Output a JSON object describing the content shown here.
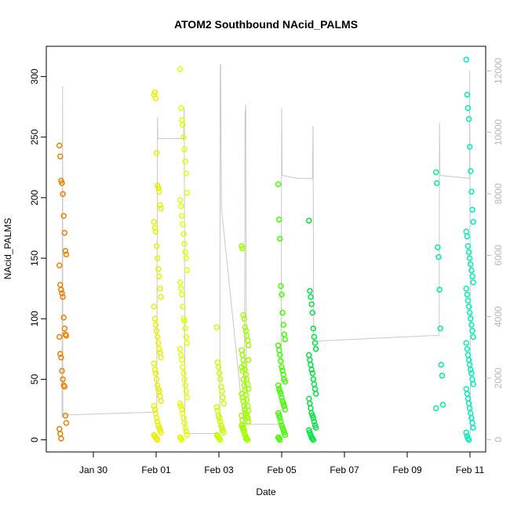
{
  "chart_data": {
    "type": "scatter",
    "title": "ATOM2 Southbound NAcid_PALMS",
    "xlabel": "Date",
    "ylabel": "NAcid_PALMS",
    "x_unit": "date",
    "xlim": [
      "2017-01-28T12:00",
      "2017-02-11T12:00"
    ],
    "ylim": [
      -10,
      325
    ],
    "y2lim": [
      -400,
      12800
    ],
    "x_ticks": [
      {
        "date": "2017-01-30",
        "label": "Jan 30"
      },
      {
        "date": "2017-02-01",
        "label": "Feb 01"
      },
      {
        "date": "2017-02-03",
        "label": "Feb 03"
      },
      {
        "date": "2017-02-05",
        "label": "Feb 05"
      },
      {
        "date": "2017-02-07",
        "label": "Feb 07"
      },
      {
        "date": "2017-02-09",
        "label": "Feb 09"
      },
      {
        "date": "2017-02-11",
        "label": "Feb 11"
      }
    ],
    "y_ticks": [
      0,
      50,
      100,
      150,
      200,
      250,
      300
    ],
    "y2_ticks": [
      0,
      2000,
      4000,
      6000,
      8000,
      10000,
      12000
    ],
    "grid": false,
    "legend": "none",
    "color_scale": [
      "#ff8c00",
      "#ffd700",
      "#ffff00",
      "#adff2f",
      "#00ff00",
      "#00e676",
      "#00ffcc"
    ],
    "series": [
      {
        "kind": "points",
        "flights": [
          {
            "date": "2017-01-29T00:40",
            "color": "#f08000",
            "values": [
              243,
              234,
              214,
              212,
              203,
              185,
              171,
              156,
              153,
              144,
              128,
              124,
              121,
              118,
              101,
              92,
              87,
              86,
              85,
              71,
              68,
              57,
              50,
              45,
              44,
              20,
              14,
              9,
              5,
              1
            ]
          },
          {
            "date": "2017-02-01T01:00",
            "color": "#e8f000",
            "values": [
              285,
              287,
              282,
              237,
              210,
              208,
              205,
              194,
              191,
              180,
              175,
              172,
              160,
              150,
              141,
              135,
              125,
              118,
              110,
              100,
              95,
              90,
              85,
              80,
              75,
              72,
              68,
              63,
              58,
              55,
              50,
              45,
              42,
              40,
              36,
              32,
              28,
              25,
              22,
              18,
              15,
              12,
              10,
              8,
              6,
              4,
              3,
              2,
              1,
              0
            ]
          },
          {
            "date": "2017-02-01T21:00",
            "color": "#e0ff00",
            "values": [
              306,
              274,
              264,
              260,
              250,
              240,
              230,
              220,
              204,
              198,
              193,
              185,
              178,
              170,
              162,
              155,
              150,
              140,
              130,
              125,
              120,
              110,
              100,
              98,
              92,
              85,
              80,
              75,
              70,
              66,
              60,
              55,
              50,
              45,
              40,
              35,
              30,
              28,
              25,
              22,
              18,
              14,
              10,
              7,
              4,
              2,
              1,
              0
            ]
          },
          {
            "date": "2017-02-03T01:00",
            "color": "#c8ff00",
            "values": [
              93,
              64,
              60,
              55,
              50,
              44,
              40,
              35,
              30,
              27,
              24,
              20,
              18,
              15,
              12,
              10,
              8,
              6,
              4,
              3,
              2,
              1,
              0
            ]
          },
          {
            "date": "2017-02-03T20:00",
            "color": "#a0ff00",
            "values": [
              160,
              158,
              103,
              100,
              93,
              90,
              86,
              82,
              78,
              74,
              70,
              66,
              62,
              58,
              54,
              50,
              46,
              42,
              38,
              35,
              32,
              28,
              25,
              22,
              20,
              18,
              15,
              12,
              10,
              8,
              6,
              4,
              2,
              1,
              0,
              66,
              60,
              57,
              50,
              45,
              41,
              37,
              33,
              28,
              24,
              20,
              16,
              12,
              8,
              4,
              1
            ]
          },
          {
            "date": "2017-02-05T00:00",
            "color": "#40ff00",
            "values": [
              211,
              182,
              166,
              127,
              120,
              105,
              95,
              87,
              83,
              78,
              74,
              70,
              65,
              60,
              57,
              54,
              50,
              48,
              45,
              42,
              40,
              38,
              35,
              32,
              30,
              28,
              25,
              22,
              20,
              18,
              15,
              12,
              10,
              8,
              6,
              4,
              2,
              1,
              0
            ]
          },
          {
            "date": "2017-02-05T23:30",
            "color": "#00e640",
            "values": [
              181,
              123,
              118,
              112,
              105,
              92,
              85,
              80,
              75,
              70,
              66,
              62,
              58,
              55,
              50,
              46,
              42,
              38,
              34,
              30,
              26,
              22,
              20,
              18,
              15,
              12,
              10,
              8,
              6,
              4,
              2,
              1,
              0
            ]
          },
          {
            "date": "2017-02-10T00:40",
            "color": "#00f0a0",
            "values": [
              221,
              212,
              159,
              151,
              124,
              92,
              62,
              53,
              29,
              26
            ]
          },
          {
            "date": "2017-02-10T23:50",
            "color": "#00f0b8",
            "values": [
              314,
              285,
              274,
              265,
              242,
              222,
              205,
              190,
              180,
              172,
              168,
              160,
              155,
              150,
              145,
              140,
              135,
              130,
              125,
              120,
              115,
              110,
              105,
              100,
              95,
              90,
              85,
              80,
              75,
              70,
              66,
              62,
              58,
              55,
              50,
              46,
              42,
              38,
              34,
              30,
              26,
              22,
              18,
              14,
              10,
              6,
              3,
              1,
              0
            ]
          }
        ]
      },
      {
        "kind": "line",
        "axis": "right",
        "color": "#c8c8c8",
        "path": [
          [
            "2017-01-29T00:00",
            700
          ],
          [
            "2017-01-29T00:30",
            11500
          ],
          [
            "2017-01-29T00:40",
            800
          ],
          [
            "2017-02-01T00:30",
            900
          ],
          [
            "2017-02-01T01:00",
            10500
          ],
          [
            "2017-02-01T01:20",
            9800
          ],
          [
            "2017-02-01T21:00",
            9800
          ],
          [
            "2017-02-01T21:30",
            10800
          ],
          [
            "2017-02-01T22:00",
            200
          ],
          [
            "2017-02-03T00:40",
            200
          ],
          [
            "2017-02-03T01:00",
            12200
          ],
          [
            "2017-02-03T01:20",
            12200
          ],
          [
            "2017-02-03T02:00",
            7500
          ],
          [
            "2017-02-03T19:30",
            300
          ],
          [
            "2017-02-03T20:00",
            10600
          ],
          [
            "2017-02-03T20:30",
            10900
          ],
          [
            "2017-02-03T21:00",
            500
          ],
          [
            "2017-02-04T23:30",
            500
          ],
          [
            "2017-02-05T00:00",
            10800
          ],
          [
            "2017-02-05T00:20",
            8600
          ],
          [
            "2017-02-05T12:00",
            8500
          ],
          [
            "2017-02-05T23:30",
            8500
          ],
          [
            "2017-02-06T00:00",
            10200
          ],
          [
            "2017-02-06T00:30",
            3200
          ],
          [
            "2017-02-10T00:30",
            3400
          ],
          [
            "2017-02-10T00:40",
            10300
          ],
          [
            "2017-02-10T01:00",
            8600
          ],
          [
            "2017-02-10T23:40",
            8500
          ],
          [
            "2017-02-10T23:50",
            12000
          ],
          [
            "2017-02-11T00:20",
            200
          ]
        ]
      }
    ]
  }
}
